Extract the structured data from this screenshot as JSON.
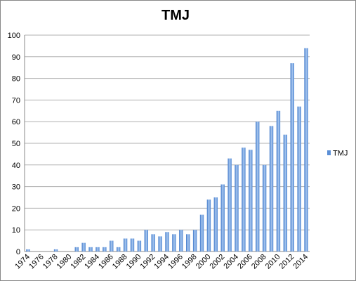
{
  "chart_data": {
    "type": "bar",
    "title": "TMJ",
    "categories": [
      "1974",
      null,
      "1976",
      null,
      "1978",
      null,
      "1980",
      null,
      "1982",
      null,
      "1984",
      null,
      "1986",
      null,
      "1988",
      null,
      "1990",
      null,
      "1992",
      null,
      "1994",
      null,
      "1996",
      null,
      "1998",
      null,
      "2000",
      null,
      "2002",
      null,
      "2004",
      null,
      "2006",
      null,
      "2008",
      null,
      "2010",
      null,
      "2012",
      null,
      "2014"
    ],
    "series": [
      {
        "name": "TMJ",
        "color": "#5b8fd6",
        "values": [
          1,
          0,
          0,
          0,
          1,
          0,
          0,
          2,
          4,
          2,
          2,
          2,
          5,
          2,
          6,
          6,
          5,
          10,
          8,
          7,
          9,
          8,
          10,
          8,
          10,
          17,
          24,
          25,
          31,
          43,
          40,
          48,
          47,
          60,
          40,
          58,
          65,
          54,
          87,
          67,
          94
        ]
      }
    ],
    "ylim": [
      0,
      100
    ],
    "yticks": [
      0,
      10,
      20,
      30,
      40,
      50,
      60,
      70,
      80,
      90,
      100
    ],
    "grid": true,
    "legend": "right"
  }
}
